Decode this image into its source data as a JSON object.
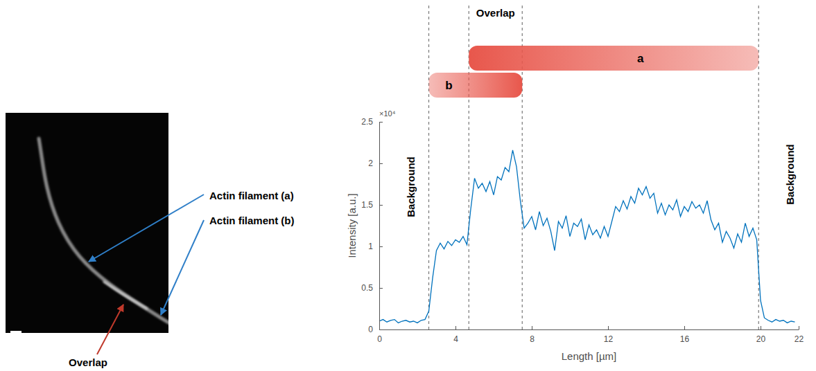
{
  "chart_data": {
    "type": "line",
    "xlabel": "Length [µm]",
    "ylabel": "Intensity [a.u.]",
    "y_multiplier": "×10⁴",
    "xlim": [
      0,
      22
    ],
    "xticks": [
      0,
      4,
      8,
      12,
      16,
      20,
      22
    ],
    "ylim": [
      0,
      2.5
    ],
    "yticks": [
      0,
      0.5,
      1,
      1.5,
      2,
      2.5
    ],
    "color": "#0072bd",
    "x": [
      0,
      0.2,
      0.4,
      0.6,
      0.8,
      1.0,
      1.2,
      1.4,
      1.6,
      1.8,
      2.0,
      2.2,
      2.4,
      2.6,
      2.8,
      3.0,
      3.2,
      3.4,
      3.6,
      3.8,
      4.0,
      4.2,
      4.4,
      4.6,
      4.8,
      5.0,
      5.2,
      5.4,
      5.6,
      5.8,
      6.0,
      6.2,
      6.4,
      6.6,
      6.8,
      7.0,
      7.2,
      7.4,
      7.6,
      7.8,
      8.0,
      8.2,
      8.4,
      8.6,
      8.8,
      9.0,
      9.2,
      9.4,
      9.6,
      9.8,
      10.0,
      10.2,
      10.4,
      10.6,
      10.8,
      11.0,
      11.2,
      11.4,
      11.6,
      11.8,
      12.0,
      12.2,
      12.4,
      12.6,
      12.8,
      13.0,
      13.2,
      13.4,
      13.6,
      13.8,
      14.0,
      14.2,
      14.4,
      14.6,
      14.8,
      15.0,
      15.2,
      15.4,
      15.6,
      15.8,
      16.0,
      16.2,
      16.4,
      16.6,
      16.8,
      17.0,
      17.2,
      17.4,
      17.6,
      17.8,
      18.0,
      18.2,
      18.4,
      18.6,
      18.8,
      19.0,
      19.2,
      19.4,
      19.6,
      19.8,
      20.0,
      20.2,
      20.4,
      20.6,
      20.8,
      21.0,
      21.2,
      21.4,
      21.6,
      21.8
    ],
    "values": [
      0.1,
      0.12,
      0.09,
      0.11,
      0.12,
      0.08,
      0.1,
      0.11,
      0.09,
      0.1,
      0.08,
      0.11,
      0.12,
      0.22,
      0.62,
      0.95,
      1.04,
      0.97,
      1.06,
      1.01,
      1.08,
      1.05,
      1.12,
      1.02,
      1.45,
      1.82,
      1.7,
      1.76,
      1.66,
      1.78,
      1.62,
      1.84,
      1.8,
      1.95,
      1.9,
      2.16,
      1.96,
      1.55,
      1.22,
      1.28,
      1.36,
      1.2,
      1.42,
      1.25,
      1.34,
      1.18,
      0.95,
      1.3,
      1.22,
      1.37,
      1.12,
      1.28,
      1.24,
      1.33,
      1.08,
      1.26,
      1.14,
      1.2,
      1.1,
      1.24,
      1.12,
      1.3,
      1.48,
      1.42,
      1.55,
      1.45,
      1.6,
      1.52,
      1.7,
      1.62,
      1.72,
      1.58,
      1.64,
      1.4,
      1.52,
      1.38,
      1.5,
      1.44,
      1.56,
      1.36,
      1.48,
      1.42,
      1.54,
      1.46,
      1.5,
      1.4,
      1.55,
      1.32,
      1.2,
      1.28,
      1.05,
      1.18,
      1.1,
      0.98,
      1.15,
      1.05,
      1.28,
      1.12,
      1.22,
      1.08,
      0.35,
      0.14,
      0.11,
      0.09,
      0.12,
      0.1,
      0.11,
      0.08,
      0.1,
      0.09
    ],
    "boundaries": [
      2.6,
      4.7,
      7.5,
      19.9
    ],
    "segments": [
      {
        "label": "a",
        "start": 4.7,
        "end": 19.9,
        "color": "#e8574c"
      },
      {
        "label": "b",
        "start": 2.6,
        "end": 7.5,
        "color": "#e8574c"
      }
    ],
    "overlap_label": "Overlap",
    "background_labels": [
      "Background",
      "Background"
    ]
  },
  "image": {
    "labels": [
      "Actin filament (a)",
      "Actin filament (b)",
      "Overlap"
    ],
    "scale_bar": "1 µm"
  }
}
